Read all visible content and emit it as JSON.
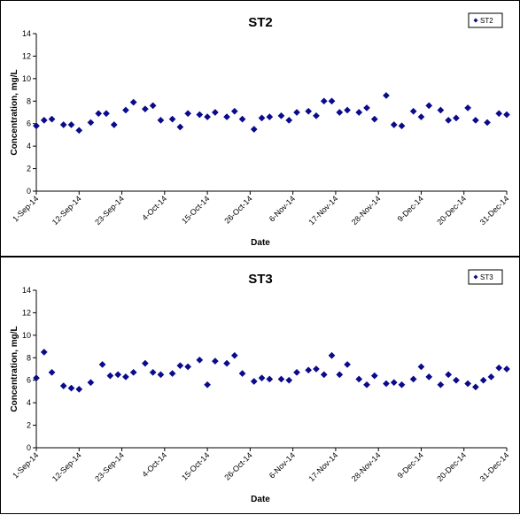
{
  "chart_data": [
    {
      "type": "scatter",
      "title": "ST2",
      "xlabel": "Date",
      "ylabel": "Concentration, mg/L",
      "ylim": [
        0,
        14
      ],
      "yticks": [
        0,
        2,
        4,
        6,
        8,
        10,
        12,
        14
      ],
      "xlim": [
        "2014-09-01",
        "2014-12-31"
      ],
      "xticks": [
        "1-Sep-14",
        "12-Sep-14",
        "23-Sep-14",
        "4-Oct-14",
        "15-Oct-14",
        "26-Oct-14",
        "6-Nov-14",
        "17-Nov-14",
        "28-Nov-14",
        "9-Dec-14",
        "20-Dec-14",
        "31-Dec-14"
      ],
      "legend": "top-right",
      "grid": false,
      "marker_color": "#0a0a8c",
      "series": [
        {
          "name": "ST2",
          "x": [
            "2014-09-01",
            "2014-09-03",
            "2014-09-05",
            "2014-09-08",
            "2014-09-10",
            "2014-09-12",
            "2014-09-15",
            "2014-09-17",
            "2014-09-19",
            "2014-09-21",
            "2014-09-24",
            "2014-09-26",
            "2014-09-29",
            "2014-10-01",
            "2014-10-03",
            "2014-10-06",
            "2014-10-08",
            "2014-10-10",
            "2014-10-13",
            "2014-10-15",
            "2014-10-17",
            "2014-10-20",
            "2014-10-22",
            "2014-10-24",
            "2014-10-27",
            "2014-10-29",
            "2014-10-31",
            "2014-11-03",
            "2014-11-05",
            "2014-11-07",
            "2014-11-10",
            "2014-11-12",
            "2014-11-14",
            "2014-11-16",
            "2014-11-18",
            "2014-11-20",
            "2014-11-23",
            "2014-11-25",
            "2014-11-27",
            "2014-11-30",
            "2014-12-02",
            "2014-12-04",
            "2014-12-07",
            "2014-12-09",
            "2014-12-11",
            "2014-12-14",
            "2014-12-16",
            "2014-12-18",
            "2014-12-21",
            "2014-12-23",
            "2014-12-26",
            "2014-12-29",
            "2014-12-31"
          ],
          "y": [
            5.8,
            6.3,
            6.4,
            5.9,
            5.9,
            5.4,
            6.1,
            6.9,
            6.9,
            5.9,
            7.2,
            7.9,
            7.3,
            7.6,
            6.3,
            6.4,
            5.7,
            6.9,
            6.8,
            6.6,
            7.0,
            6.6,
            7.1,
            6.4,
            5.5,
            6.5,
            6.6,
            6.7,
            6.3,
            7.0,
            7.1,
            6.7,
            8.0,
            8.0,
            7.0,
            7.2,
            7.0,
            7.4,
            6.4,
            8.5,
            5.9,
            5.8,
            7.1,
            6.6,
            7.6,
            7.2,
            6.3,
            6.5,
            7.4,
            6.3,
            6.1,
            6.9,
            6.8
          ]
        }
      ]
    },
    {
      "type": "scatter",
      "title": "ST3",
      "xlabel": "Date",
      "ylabel": "Concentration, mg/L",
      "ylim": [
        0,
        14
      ],
      "yticks": [
        0,
        2,
        4,
        6,
        8,
        10,
        12,
        14
      ],
      "xlim": [
        "2014-09-01",
        "2014-12-31"
      ],
      "xticks": [
        "1-Sep-14",
        "12-Sep-14",
        "23-Sep-14",
        "4-Oct-14",
        "15-Oct-14",
        "26-Oct-14",
        "6-Nov-14",
        "17-Nov-14",
        "28-Nov-14",
        "9-Dec-14",
        "20-Dec-14",
        "31-Dec-14"
      ],
      "legend": "top-right",
      "grid": false,
      "marker_color": "#0a0a8c",
      "series": [
        {
          "name": "ST3",
          "x": [
            "2014-09-01",
            "2014-09-03",
            "2014-09-05",
            "2014-09-08",
            "2014-09-10",
            "2014-09-12",
            "2014-09-15",
            "2014-09-18",
            "2014-09-20",
            "2014-09-22",
            "2014-09-24",
            "2014-09-26",
            "2014-09-29",
            "2014-10-01",
            "2014-10-03",
            "2014-10-06",
            "2014-10-08",
            "2014-10-10",
            "2014-10-13",
            "2014-10-15",
            "2014-10-17",
            "2014-10-20",
            "2014-10-22",
            "2014-10-24",
            "2014-10-27",
            "2014-10-29",
            "2014-10-31",
            "2014-11-03",
            "2014-11-05",
            "2014-11-07",
            "2014-11-10",
            "2014-11-12",
            "2014-11-14",
            "2014-11-16",
            "2014-11-18",
            "2014-11-20",
            "2014-11-23",
            "2014-11-25",
            "2014-11-27",
            "2014-11-30",
            "2014-12-02",
            "2014-12-04",
            "2014-12-07",
            "2014-12-09",
            "2014-12-11",
            "2014-12-14",
            "2014-12-16",
            "2014-12-18",
            "2014-12-21",
            "2014-12-23",
            "2014-12-25",
            "2014-12-27",
            "2014-12-29",
            "2014-12-31"
          ],
          "y": [
            6.2,
            8.5,
            6.7,
            5.5,
            5.3,
            5.2,
            5.8,
            7.4,
            6.4,
            6.5,
            6.3,
            6.7,
            7.5,
            6.7,
            6.5,
            6.6,
            7.3,
            7.2,
            7.8,
            5.6,
            7.7,
            7.5,
            8.2,
            6.6,
            5.9,
            6.2,
            6.1,
            6.1,
            6.0,
            6.7,
            6.9,
            7.0,
            6.5,
            8.2,
            6.5,
            7.4,
            6.1,
            5.6,
            6.4,
            5.7,
            5.8,
            5.6,
            6.1,
            7.2,
            6.3,
            5.6,
            6.5,
            6.0,
            5.7,
            5.4,
            6.0,
            6.3,
            7.1,
            7.0
          ]
        }
      ]
    }
  ]
}
